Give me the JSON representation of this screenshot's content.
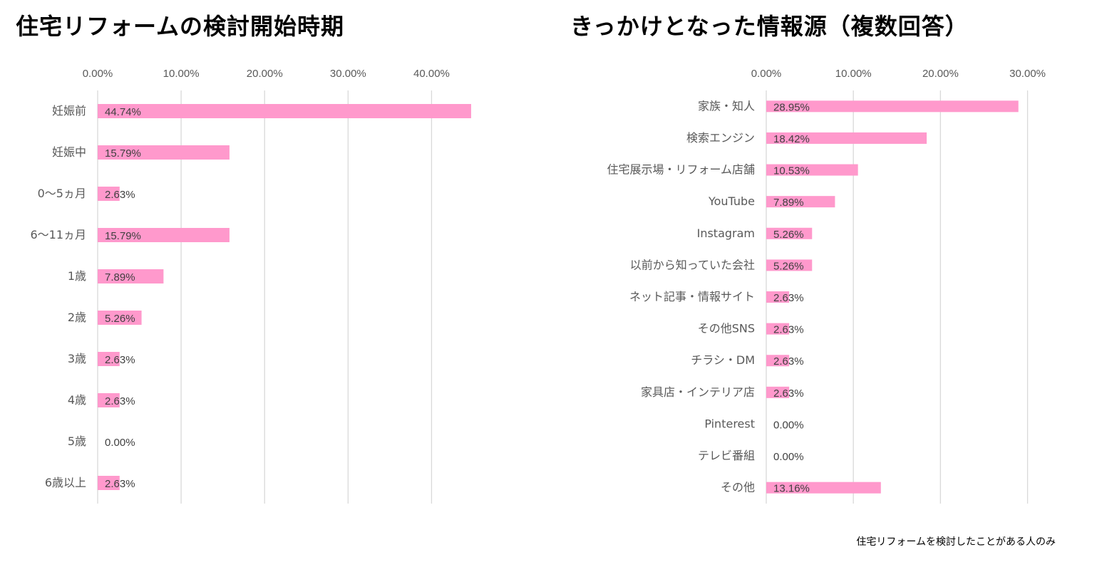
{
  "chart_data": [
    {
      "type": "bar",
      "orientation": "horizontal",
      "title": "住宅リフォームの検討開始時期",
      "categories": [
        "妊娠前",
        "妊娠中",
        "0〜5ヵ月",
        "6〜11ヵ月",
        "1歳",
        "2歳",
        "3歳",
        "4歳",
        "5歳",
        "6歳以上"
      ],
      "values": [
        44.74,
        15.79,
        2.63,
        15.79,
        7.89,
        5.26,
        2.63,
        2.63,
        0.0,
        2.63
      ],
      "value_labels": [
        "44.74%",
        "15.79%",
        "2.63%",
        "15.79%",
        "7.89%",
        "5.26%",
        "2.63%",
        "2.63%",
        "0.00%",
        "2.63%"
      ],
      "x_ticks": [
        0,
        10,
        20,
        30,
        40
      ],
      "x_tick_labels": [
        "0.00%",
        "10.00%",
        "20.00%",
        "30.00%",
        "40.00%"
      ],
      "xlim": [
        0,
        45
      ],
      "xaxis_position": "top",
      "grid": true,
      "bar_color": "#ff99cc"
    },
    {
      "type": "bar",
      "orientation": "horizontal",
      "title": "きっかけとなった情報源（複数回答）",
      "categories": [
        "家族・知人",
        "検索エンジン",
        "住宅展示場・リフォーム店舗",
        "YouTube",
        "Instagram",
        "以前から知っていた会社",
        "ネット記事・情報サイト",
        "その他SNS",
        "チラシ・DM",
        "家具店・インテリア店",
        "Pinterest",
        "テレビ番組",
        "その他"
      ],
      "values": [
        28.95,
        18.42,
        10.53,
        7.89,
        5.26,
        5.26,
        2.63,
        2.63,
        2.63,
        2.63,
        0.0,
        0.0,
        13.16
      ],
      "value_labels": [
        "28.95%",
        "18.42%",
        "10.53%",
        "7.89%",
        "5.26%",
        "5.26%",
        "2.63%",
        "2.63%",
        "2.63%",
        "2.63%",
        "0.00%",
        "0.00%",
        "13.16%"
      ],
      "x_ticks": [
        0,
        10,
        20,
        30
      ],
      "x_tick_labels": [
        "0.00%",
        "10.00%",
        "20.00%",
        "30.00%"
      ],
      "xlim": [
        0,
        32
      ],
      "xaxis_position": "top",
      "grid": true,
      "bar_color": "#ff99cc"
    }
  ],
  "footnote": "住宅リフォームを検討したことがある人のみ"
}
